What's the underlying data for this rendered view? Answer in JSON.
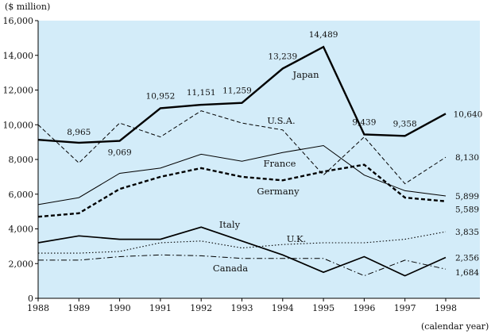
{
  "chart_data": {
    "type": "line",
    "ylabel": "($ million)",
    "xlabel": "(calendar year)",
    "x": [
      1988,
      1989,
      1990,
      1991,
      1992,
      1993,
      1994,
      1995,
      1996,
      1997,
      1998
    ],
    "ylim": [
      0,
      16000
    ],
    "yticks": [
      "0",
      "2,000",
      "4,000",
      "6,000",
      "8,000",
      "10,000",
      "12,000",
      "14,000",
      "16,000"
    ],
    "ytick_values": [
      0,
      2000,
      4000,
      6000,
      8000,
      10000,
      12000,
      14000,
      16000
    ],
    "xticks": [
      "1988",
      "1989",
      "1990",
      "1991",
      "1992",
      "1993",
      "1994",
      "1995",
      "1996",
      "1997",
      "1998"
    ],
    "grid": false,
    "background_color": "#d3ecf9",
    "series": [
      {
        "name": "Japan",
        "style": "solid-thick",
        "values": [
          9134,
          8965,
          9069,
          10952,
          11151,
          11259,
          13239,
          14489,
          9439,
          9358,
          10640
        ],
        "data_labels": [
          "",
          "8,965",
          "9,069",
          "10,952",
          "11,151",
          "11,259",
          "13,239",
          "14,489",
          "9,439",
          "9,358",
          "10,640"
        ]
      },
      {
        "name": "U.S.A.",
        "style": "dashed",
        "values": [
          10000,
          7800,
          10100,
          9300,
          10800,
          10100,
          9700,
          7100,
          9300,
          6600,
          8130
        ],
        "data_labels": [
          "",
          "",
          "",
          "",
          "",
          "",
          "",
          "",
          "",
          "",
          "8,130"
        ]
      },
      {
        "name": "France",
        "style": "solid-thin",
        "values": [
          5400,
          5800,
          7200,
          7500,
          8300,
          7900,
          8400,
          8800,
          7100,
          6200,
          5899
        ],
        "data_labels": [
          "",
          "",
          "",
          "",
          "",
          "",
          "",
          "",
          "",
          "",
          "5,899"
        ]
      },
      {
        "name": "Germany",
        "style": "dashed-thick",
        "values": [
          4700,
          4900,
          6300,
          7000,
          7500,
          7000,
          6800,
          7300,
          7700,
          5800,
          5589
        ],
        "data_labels": [
          "",
          "",
          "",
          "",
          "",
          "",
          "",
          "",
          "",
          "",
          "5,589"
        ]
      },
      {
        "name": "Italy",
        "style": "solid-medium",
        "values": [
          3200,
          3600,
          3400,
          3400,
          4100,
          3300,
          2500,
          1500,
          2400,
          1300,
          2356
        ],
        "data_labels": [
          "",
          "",
          "",
          "",
          "",
          "",
          "",
          "",
          "",
          "",
          "2,356"
        ]
      },
      {
        "name": "U.K.",
        "style": "dotted",
        "values": [
          2600,
          2600,
          2700,
          3200,
          3300,
          2900,
          3100,
          3200,
          3200,
          3400,
          3835
        ],
        "data_labels": [
          "",
          "",
          "",
          "",
          "",
          "",
          "",
          "",
          "",
          "",
          "3,835"
        ]
      },
      {
        "name": "Canada",
        "style": "dash-dot",
        "values": [
          2200,
          2200,
          2400,
          2500,
          2450,
          2300,
          2300,
          2300,
          1300,
          2200,
          1684
        ],
        "data_labels": [
          "",
          "",
          "",
          "",
          "",
          "",
          "",
          "",
          "",
          "",
          "1,684"
        ]
      }
    ]
  }
}
